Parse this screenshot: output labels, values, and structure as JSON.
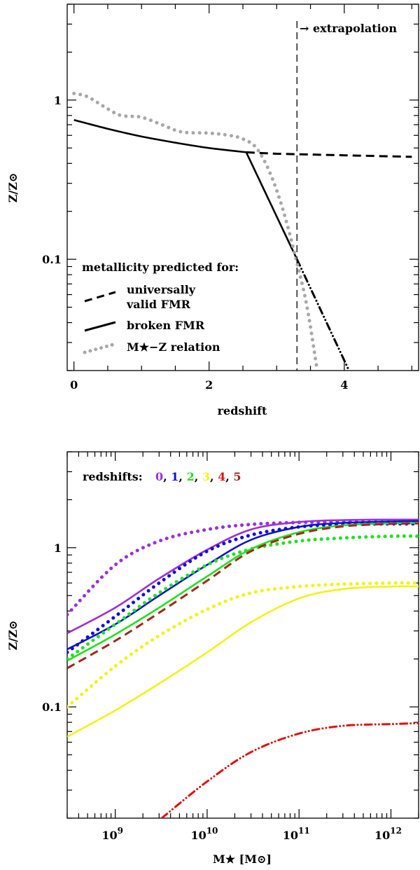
{
  "chart_data": [
    {
      "type": "line",
      "title": "",
      "xlabel": "redshift",
      "ylabel": "Z/Z⊙",
      "xlim": [
        -0.1,
        5.1
      ],
      "ylim": [
        0.02,
        4.0
      ],
      "yscale": "log",
      "x_ticks": [
        0,
        2,
        4
      ],
      "y_ticks": [
        {
          "value": 0.1,
          "label": "0.1"
        },
        {
          "value": 1,
          "label": "1"
        }
      ],
      "legend_title": "metallicity predicted for:",
      "legend": [
        {
          "key": "fmr",
          "label_lines": [
            "universally",
            "valid FMR"
          ]
        },
        {
          "key": "broken",
          "label_lines": [
            "broken FMR"
          ]
        },
        {
          "key": "mz",
          "label_lines": [
            "M★−Z relation"
          ]
        }
      ],
      "annotation": {
        "text": "→ extrapolation",
        "x": 3.3
      },
      "series": [
        {
          "key": "fmr",
          "name": "universally valid FMR",
          "style": "dashed",
          "x": [
            2.55,
            3.0,
            3.5,
            4.0,
            4.5,
            5.0
          ],
          "y": [
            0.47,
            0.46,
            0.455,
            0.45,
            0.445,
            0.44
          ]
        },
        {
          "key": "broken",
          "name": "broken FMR",
          "style": "solid",
          "x": [
            0.0,
            0.5,
            1.0,
            1.5,
            2.0,
            2.55,
            3.3
          ],
          "y": [
            0.75,
            0.66,
            0.59,
            0.54,
            0.5,
            0.47,
            0.1
          ]
        },
        {
          "key": "broken_ext",
          "name": "broken FMR (extrapolated)",
          "style": "dashdotdot",
          "x": [
            3.3,
            4.07
          ],
          "y": [
            0.1,
            0.02
          ]
        },
        {
          "key": "mz",
          "name": "M★−Z relation",
          "style": "dotted",
          "color": "#a8a8a8",
          "x": [
            0.0,
            0.2,
            0.5,
            0.7,
            1.0,
            1.3,
            1.6,
            2.0,
            2.3,
            2.5,
            2.7,
            2.9,
            3.1,
            3.3,
            3.45,
            3.6
          ],
          "y": [
            1.1,
            1.05,
            0.88,
            0.8,
            0.78,
            0.7,
            0.63,
            0.62,
            0.6,
            0.57,
            0.5,
            0.35,
            0.2,
            0.095,
            0.05,
            0.02
          ]
        }
      ]
    },
    {
      "type": "line",
      "title": "",
      "xlabel": "M★ [M⊙]",
      "ylabel": "Z/Z⊙",
      "xscale": "log",
      "yscale": "log",
      "xlim": [
        300000000.0,
        2000000000000.0
      ],
      "ylim": [
        0.02,
        4.0
      ],
      "x_ticks": [
        {
          "value": 1000000000.0,
          "base": "10",
          "exp": "9"
        },
        {
          "value": 10000000000.0,
          "base": "10",
          "exp": "10"
        },
        {
          "value": 100000000000.0,
          "base": "10",
          "exp": "11"
        },
        {
          "value": 1000000000000.0,
          "base": "10",
          "exp": "12"
        }
      ],
      "y_ticks": [
        {
          "value": 0.1,
          "label": "0.1"
        },
        {
          "value": 1,
          "label": "1"
        }
      ],
      "legend_title": "redshifts:",
      "legend_entries": [
        {
          "label": "0",
          "color": "#9b30d9"
        },
        {
          "label": "1",
          "color": "#1010d0"
        },
        {
          "label": "2",
          "color": "#22e022"
        },
        {
          "label": "3",
          "color": "#f2f21a"
        },
        {
          "label": "4",
          "color": "#e01010"
        },
        {
          "label": "5",
          "color": "#a02818"
        }
      ],
      "series": [
        {
          "name": "z=0 solid",
          "color": "#9b30d9",
          "style": "solid",
          "x": [
            300000000.0,
            1000000000.0,
            3000000000.0,
            10000000000.0,
            30000000000.0,
            100000000000.0,
            300000000000.0,
            1000000000000.0,
            2000000000000.0
          ],
          "y": [
            0.29,
            0.42,
            0.64,
            0.97,
            1.3,
            1.45,
            1.49,
            1.5,
            1.5
          ]
        },
        {
          "name": "z=0 dotted",
          "color": "#9b30d9",
          "style": "dotted",
          "x": [
            300000000.0,
            1000000000.0,
            3000000000.0,
            10000000000.0,
            30000000000.0,
            100000000000.0,
            300000000000.0,
            1000000000000.0,
            2000000000000.0
          ],
          "y": [
            0.38,
            0.78,
            1.1,
            1.3,
            1.4,
            1.44,
            1.45,
            1.45,
            1.45
          ]
        },
        {
          "name": "z=1 solid",
          "color": "#1010d0",
          "style": "solid",
          "x": [
            300000000.0,
            1000000000.0,
            3000000000.0,
            10000000000.0,
            30000000000.0,
            100000000000.0,
            300000000000.0,
            1000000000000.0,
            2000000000000.0
          ],
          "y": [
            0.23,
            0.33,
            0.5,
            0.78,
            1.12,
            1.35,
            1.43,
            1.46,
            1.47
          ]
        },
        {
          "name": "z=1 dotted",
          "color": "#1010d0",
          "style": "dotted",
          "x": [
            300000000.0,
            1000000000.0,
            3000000000.0,
            10000000000.0,
            30000000000.0,
            100000000000.0,
            300000000000.0,
            1000000000000.0,
            2000000000000.0
          ],
          "y": [
            0.22,
            0.37,
            0.6,
            0.95,
            1.2,
            1.35,
            1.4,
            1.41,
            1.41
          ]
        },
        {
          "name": "z=2 solid",
          "color": "#22e022",
          "style": "solid",
          "x": [
            300000000.0,
            1000000000.0,
            3000000000.0,
            10000000000.0,
            30000000000.0,
            100000000000.0,
            300000000000.0,
            1000000000000.0,
            2000000000000.0
          ],
          "y": [
            0.195,
            0.285,
            0.42,
            0.66,
            0.98,
            1.25,
            1.38,
            1.42,
            1.43
          ]
        },
        {
          "name": "z=2 dotted",
          "color": "#22e022",
          "style": "dotted",
          "x": [
            300000000.0,
            1000000000.0,
            3000000000.0,
            10000000000.0,
            30000000000.0,
            100000000000.0,
            300000000000.0,
            1000000000000.0,
            2000000000000.0
          ],
          "y": [
            0.2,
            0.33,
            0.52,
            0.78,
            0.98,
            1.1,
            1.15,
            1.18,
            1.18
          ]
        },
        {
          "name": "z=3 solid",
          "color": "#f2f21a",
          "style": "solid",
          "x": [
            300000000.0,
            1000000000.0,
            3000000000.0,
            10000000000.0,
            30000000000.0,
            100000000000.0,
            300000000000.0,
            1000000000000.0,
            2000000000000.0
          ],
          "y": [
            0.065,
            0.095,
            0.14,
            0.22,
            0.34,
            0.48,
            0.55,
            0.57,
            0.57
          ]
        },
        {
          "name": "z=3 dotted",
          "color": "#f2f21a",
          "style": "dotted",
          "x": [
            300000000.0,
            1000000000.0,
            3000000000.0,
            10000000000.0,
            30000000000.0,
            100000000000.0,
            300000000000.0,
            1000000000000.0,
            2000000000000.0
          ],
          "y": [
            0.1,
            0.18,
            0.28,
            0.41,
            0.52,
            0.57,
            0.59,
            0.6,
            0.6
          ]
        },
        {
          "name": "z=4",
          "color": "#e01010",
          "style": "dashdotdot",
          "x": [
            3200000000.0,
            10000000000.0,
            30000000000.0,
            100000000000.0,
            300000000000.0,
            1000000000000.0,
            2000000000000.0
          ],
          "y": [
            0.02,
            0.034,
            0.052,
            0.068,
            0.076,
            0.078,
            0.079
          ]
        },
        {
          "name": "z=5",
          "color": "#a02818",
          "style": "dashed",
          "x": [
            300000000.0,
            1000000000.0,
            3000000000.0,
            10000000000.0,
            30000000000.0,
            100000000000.0,
            300000000000.0,
            1000000000000.0,
            2000000000000.0
          ],
          "y": [
            0.175,
            0.26,
            0.39,
            0.62,
            0.95,
            1.22,
            1.36,
            1.41,
            1.42
          ]
        }
      ]
    }
  ]
}
